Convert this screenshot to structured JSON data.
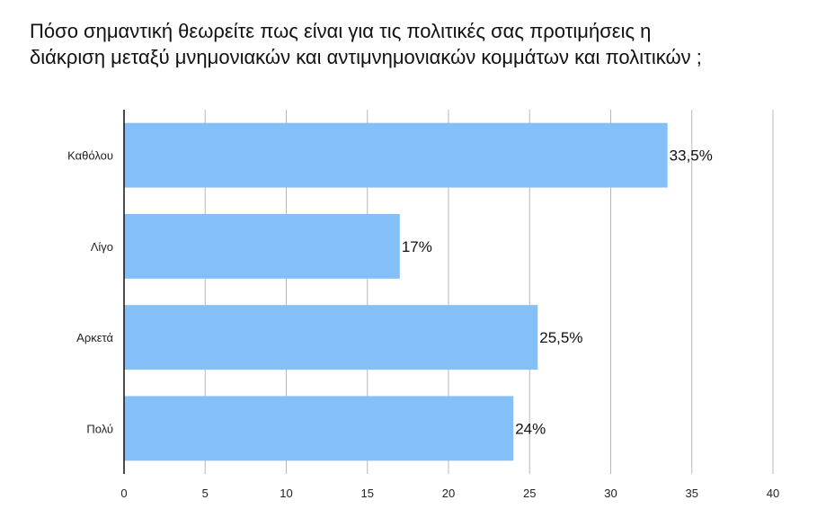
{
  "chart_data": {
    "type": "bar",
    "orientation": "horizontal",
    "title_lines": [
      "Πόσο σημαντική θεωρείτε πως είναι για τις πολιτικές σας προτιμήσεις η",
      "διάκριση μεταξύ μνημονιακών και αντιμνημονιακών κομμάτων και πολιτικών ;"
    ],
    "categories": [
      "Καθόλου",
      "Λίγο",
      "Αρκετά",
      "Πολύ"
    ],
    "values": [
      33.5,
      17,
      25.5,
      24
    ],
    "data_labels": [
      "33,5%",
      "17%",
      "25,5%",
      "24%"
    ],
    "xlim": [
      0,
      40
    ],
    "xticks": [
      0,
      5,
      10,
      15,
      20,
      25,
      30,
      35,
      40
    ],
    "xlabel": "",
    "ylabel": "",
    "grid": true,
    "legend": "none",
    "bar_color": "#85BFF8",
    "grid_color": "#B8B8B8"
  }
}
